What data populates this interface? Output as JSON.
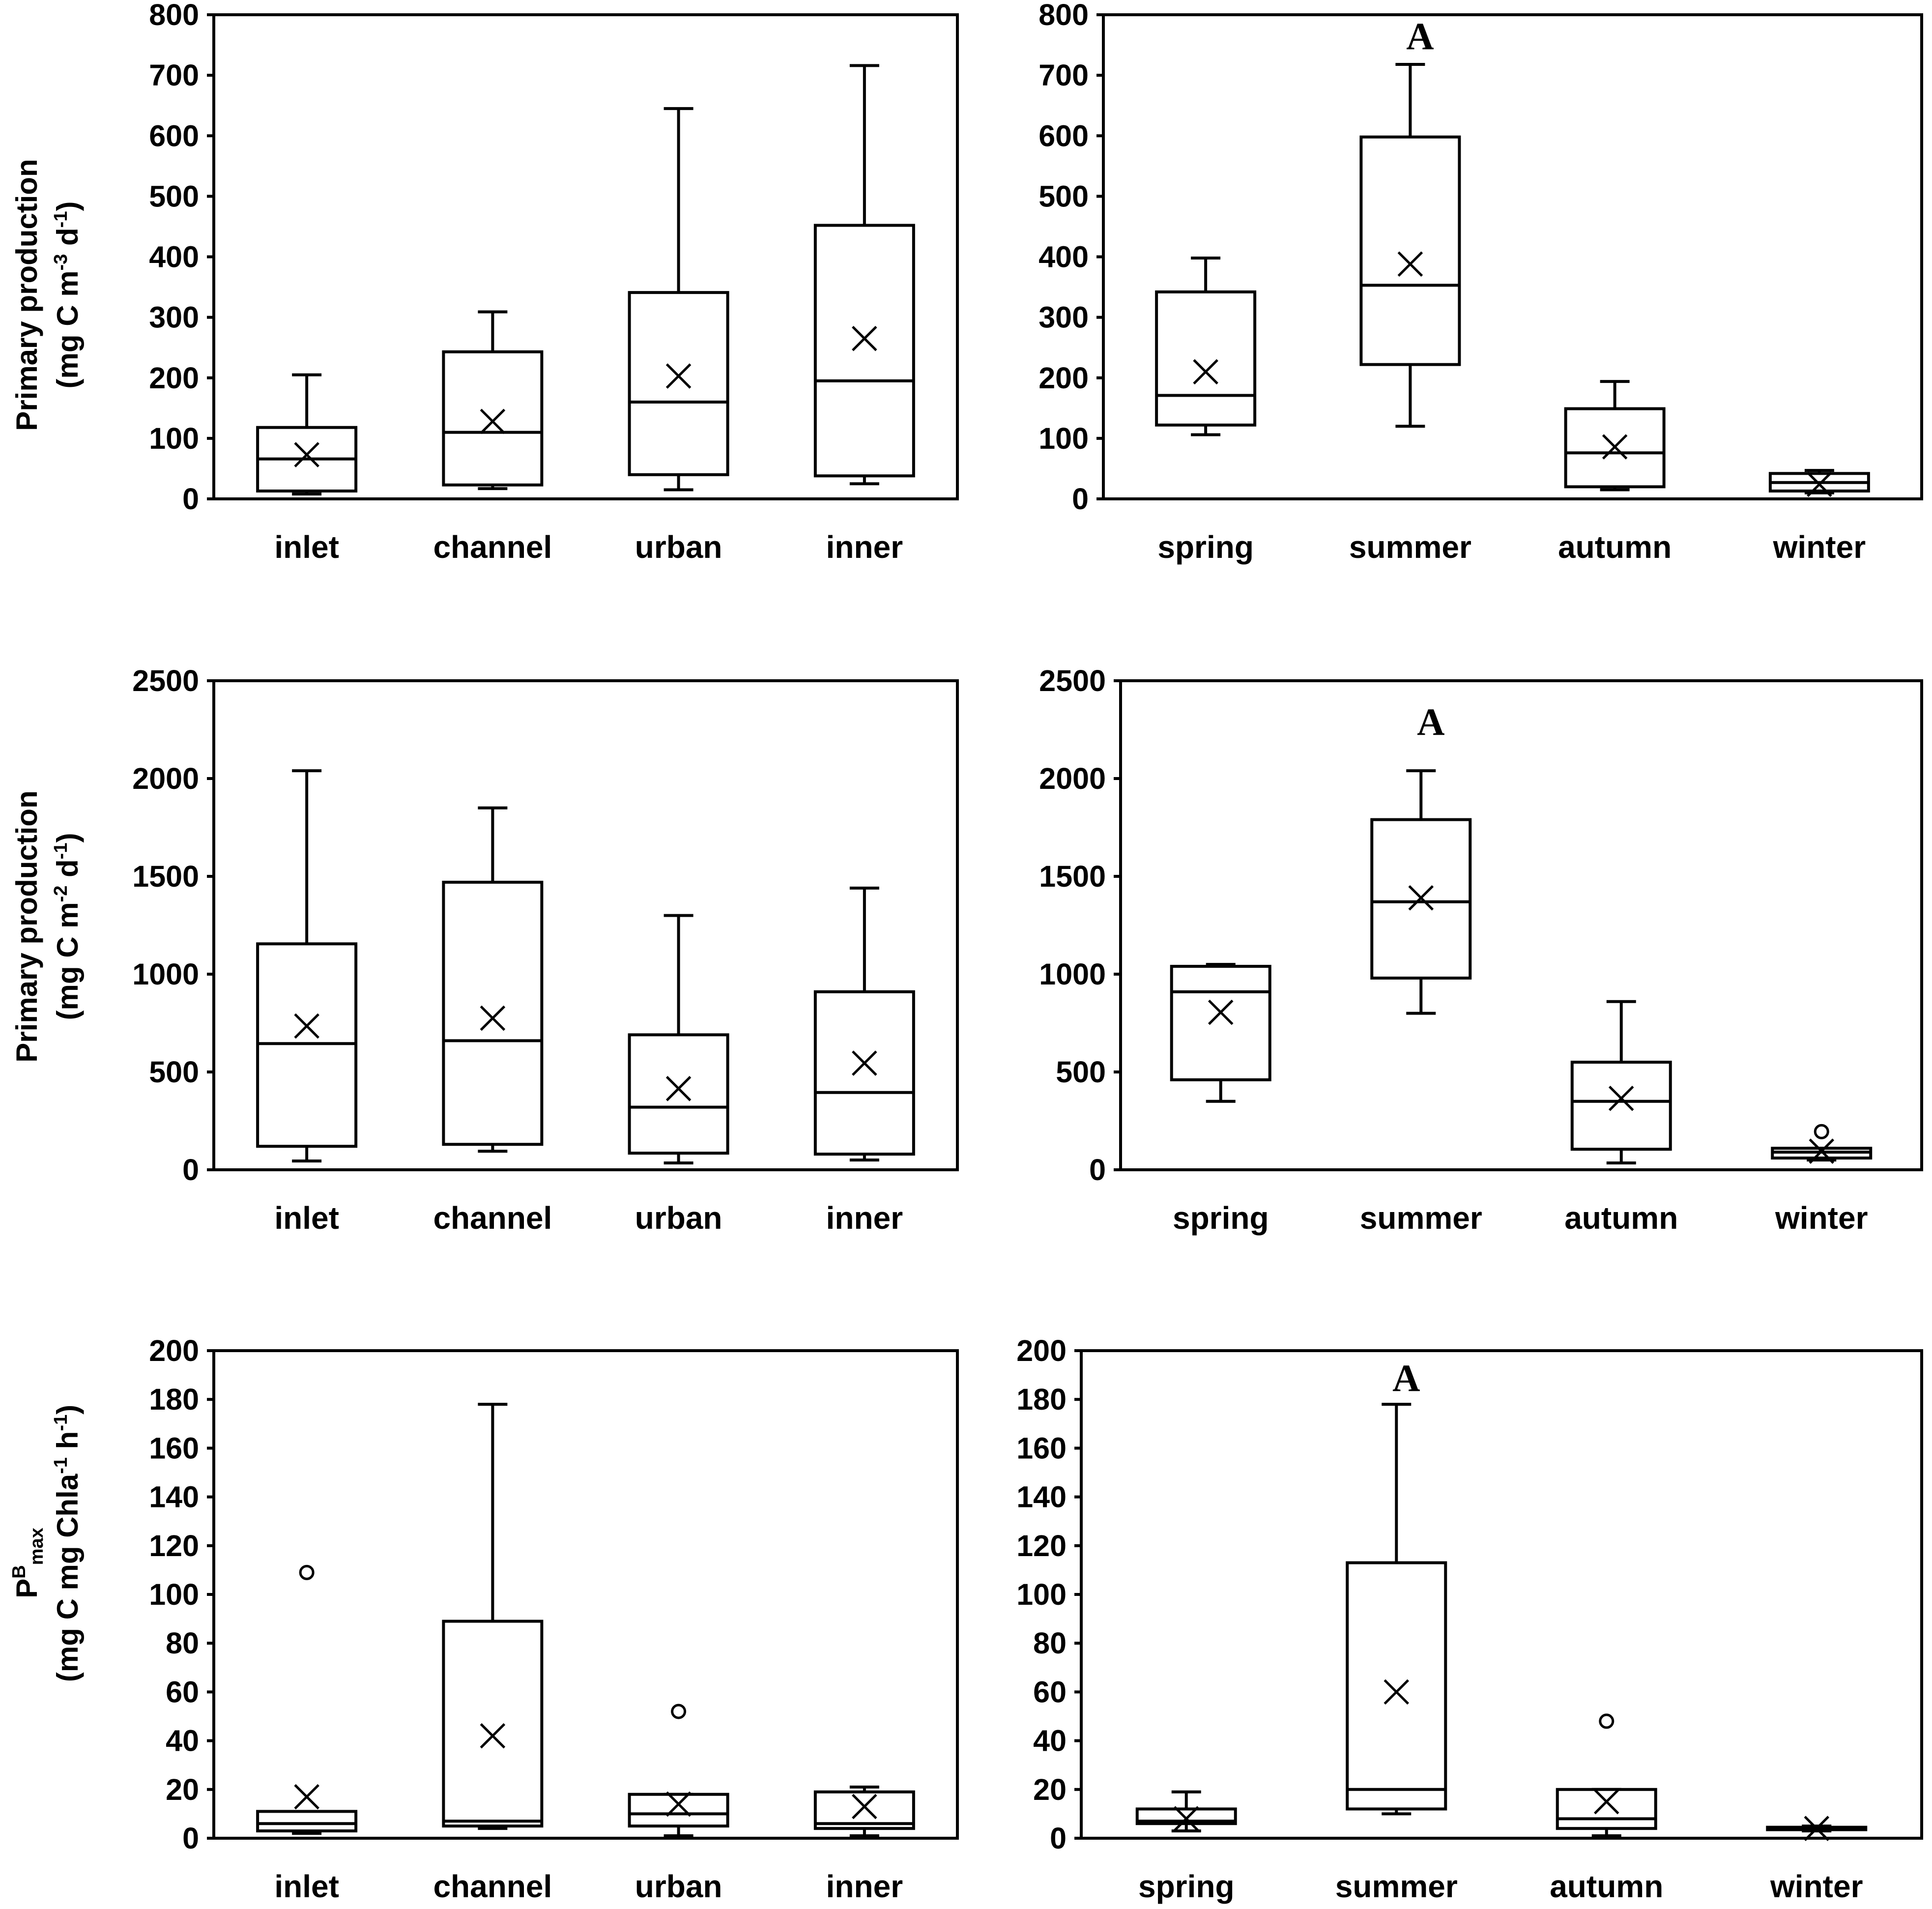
{
  "ylabels": {
    "row1": {
      "line1": "Primary production",
      "line2_prefix": "(mg C m",
      "line2_exp1": "-3",
      "line2_mid": " d",
      "line2_exp2": "-1",
      "line2_suffix": ")"
    },
    "row2": {
      "line1": "Primary production",
      "line2_prefix": "(mg C m",
      "line2_exp1": "-2",
      "line2_mid": " d",
      "line2_exp2": "-1",
      "line2_suffix": ")"
    },
    "row3": {
      "line1_main": "P",
      "line1_sup": "B",
      "line1_sub": "max",
      "line2_prefix": "(mg C mg Chla",
      "line2_exp1": "-1",
      "line2_mid": " h",
      "line2_exp2": "-1",
      "line2_suffix": ")"
    }
  },
  "chart_data": [
    {
      "type": "box",
      "id": "pp-vol-site",
      "categories": [
        "inlet",
        "channel",
        "urban",
        "inner"
      ],
      "ylim": [
        0,
        800
      ],
      "yticks": [
        0,
        100,
        200,
        300,
        400,
        500,
        600,
        700,
        800
      ],
      "boxes": [
        {
          "min": 8,
          "q1": 13,
          "median": 66,
          "q3": 118,
          "max": 205,
          "mean": 73,
          "outliers": []
        },
        {
          "min": 17,
          "q1": 23,
          "median": 110,
          "q3": 243,
          "max": 309,
          "mean": 128,
          "outliers": []
        },
        {
          "min": 15,
          "q1": 40,
          "median": 160,
          "q3": 341,
          "max": 645,
          "mean": 203,
          "outliers": []
        },
        {
          "min": 25,
          "q1": 38,
          "median": 195,
          "q3": 452,
          "max": 716,
          "mean": 265,
          "outliers": []
        }
      ],
      "annotation": ""
    },
    {
      "type": "box",
      "id": "pp-vol-season",
      "categories": [
        "spring",
        "summer",
        "autumn",
        "winter"
      ],
      "ylim": [
        0,
        800
      ],
      "yticks": [
        0,
        100,
        200,
        300,
        400,
        500,
        600,
        700,
        800
      ],
      "boxes": [
        {
          "min": 106,
          "q1": 122,
          "median": 171,
          "q3": 342,
          "max": 398,
          "mean": 210,
          "outliers": []
        },
        {
          "min": 120,
          "q1": 222,
          "median": 353,
          "q3": 598,
          "max": 718,
          "mean": 388,
          "outliers": []
        },
        {
          "min": 15,
          "q1": 20,
          "median": 76,
          "q3": 149,
          "max": 194,
          "mean": 86,
          "outliers": []
        },
        {
          "min": 10,
          "q1": 13,
          "median": 27,
          "q3": 42,
          "max": 47,
          "mean": 24,
          "outliers": []
        }
      ],
      "annotation": "A"
    },
    {
      "type": "box",
      "id": "pp-area-site",
      "categories": [
        "inlet",
        "channel",
        "urban",
        "inner"
      ],
      "ylim": [
        0,
        2500
      ],
      "yticks": [
        0,
        500,
        1000,
        1500,
        2000,
        2500
      ],
      "boxes": [
        {
          "min": 45,
          "q1": 120,
          "median": 645,
          "q3": 1155,
          "max": 2040,
          "mean": 735,
          "outliers": []
        },
        {
          "min": 95,
          "q1": 130,
          "median": 660,
          "q3": 1470,
          "max": 1850,
          "mean": 775,
          "outliers": []
        },
        {
          "min": 35,
          "q1": 85,
          "median": 320,
          "q3": 690,
          "max": 1300,
          "mean": 415,
          "outliers": []
        },
        {
          "min": 50,
          "q1": 80,
          "median": 395,
          "q3": 910,
          "max": 1440,
          "mean": 545,
          "outliers": []
        }
      ],
      "annotation": ""
    },
    {
      "type": "box",
      "id": "pp-area-season",
      "categories": [
        "spring",
        "summer",
        "autumn",
        "winter"
      ],
      "ylim": [
        0,
        2500
      ],
      "yticks": [
        0,
        500,
        1000,
        1500,
        2000,
        2500
      ],
      "boxes": [
        {
          "min": 350,
          "q1": 460,
          "median": 910,
          "q3": 1040,
          "max": 1050,
          "mean": 805,
          "outliers": []
        },
        {
          "min": 800,
          "q1": 980,
          "median": 1370,
          "q3": 1790,
          "max": 2040,
          "mean": 1390,
          "outliers": []
        },
        {
          "min": 35,
          "q1": 105,
          "median": 350,
          "q3": 550,
          "max": 860,
          "mean": 365,
          "outliers": []
        },
        {
          "min": 50,
          "q1": 60,
          "median": 90,
          "q3": 110,
          "max": 110,
          "mean": 95,
          "outliers": [
            195
          ]
        }
      ],
      "annotation": "A"
    },
    {
      "type": "box",
      "id": "pbmax-site",
      "categories": [
        "inlet",
        "channel",
        "urban",
        "inner"
      ],
      "ylim": [
        0,
        200
      ],
      "yticks": [
        0,
        20,
        40,
        60,
        80,
        100,
        120,
        140,
        160,
        180,
        200
      ],
      "boxes": [
        {
          "min": 2,
          "q1": 3,
          "median": 6,
          "q3": 11,
          "max": 11,
          "mean": 17,
          "outliers": [
            109
          ]
        },
        {
          "min": 4,
          "q1": 5,
          "median": 7,
          "q3": 89,
          "max": 178,
          "mean": 42,
          "outliers": []
        },
        {
          "min": 1,
          "q1": 5,
          "median": 10,
          "q3": 18,
          "max": 18,
          "mean": 14,
          "outliers": [
            52
          ]
        },
        {
          "min": 1,
          "q1": 4,
          "median": 6,
          "q3": 19,
          "max": 21,
          "mean": 13,
          "outliers": []
        }
      ],
      "annotation": ""
    },
    {
      "type": "box",
      "id": "pbmax-season",
      "categories": [
        "spring",
        "summer",
        "autumn",
        "winter"
      ],
      "ylim": [
        0,
        200
      ],
      "yticks": [
        0,
        20,
        40,
        60,
        80,
        100,
        120,
        140,
        160,
        180,
        200
      ],
      "boxes": [
        {
          "min": 3,
          "q1": 6,
          "median": 7,
          "q3": 12,
          "max": 19,
          "mean": 8,
          "outliers": []
        },
        {
          "min": 10,
          "q1": 12,
          "median": 20,
          "q3": 113,
          "max": 178,
          "mean": 60,
          "outliers": []
        },
        {
          "min": 1,
          "q1": 4,
          "median": 8,
          "q3": 20,
          "max": 20,
          "mean": 15,
          "outliers": [
            48
          ]
        },
        {
          "min": 3,
          "q1": 3.5,
          "median": 4,
          "q3": 4.5,
          "max": 5,
          "mean": 4,
          "outliers": []
        }
      ],
      "annotation": "A"
    }
  ]
}
